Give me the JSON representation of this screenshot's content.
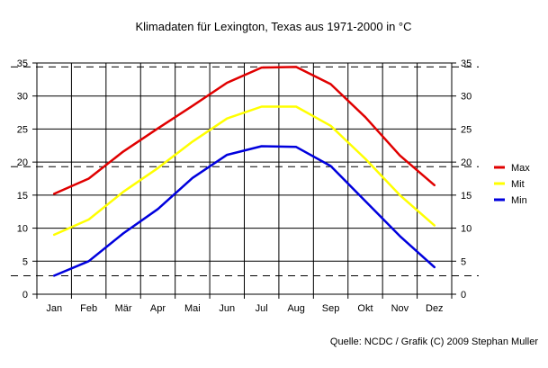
{
  "chart_data": {
    "type": "line",
    "title": "Klimadaten für Lexington, Texas aus 1971-2000 in °C",
    "source": "Quelle: NCDC / Grafik (C) 2009 Stephan Muller",
    "categories": [
      "Jan",
      "Feb",
      "Mär",
      "Apr",
      "Mai",
      "Jun",
      "Jul",
      "Aug",
      "Sep",
      "Okt",
      "Nov",
      "Dez"
    ],
    "y_ticks": [
      "0",
      "5",
      "10",
      "15",
      "20",
      "25",
      "30",
      "35"
    ],
    "ylim": [
      0,
      35
    ],
    "grid": true,
    "y_axis_both_sides": true,
    "legend_position": "right",
    "reference_lines": [
      2.8,
      19.3,
      34.4
    ],
    "series": [
      {
        "name": "Max",
        "color": "#e00000",
        "values": [
          15.2,
          17.5,
          21.6,
          25.1,
          28.5,
          32.0,
          34.3,
          34.4,
          31.8,
          26.8,
          21.0,
          16.5
        ]
      },
      {
        "name": "Mit",
        "color": "#ffff00",
        "values": [
          9.0,
          11.3,
          15.5,
          19.1,
          23.1,
          26.6,
          28.4,
          28.4,
          25.5,
          20.5,
          15.0,
          10.4
        ]
      },
      {
        "name": "Min",
        "color": "#0000dd",
        "values": [
          2.8,
          5.0,
          9.2,
          12.9,
          17.6,
          21.1,
          22.4,
          22.3,
          19.4,
          14.1,
          8.8,
          4.1
        ]
      }
    ]
  }
}
